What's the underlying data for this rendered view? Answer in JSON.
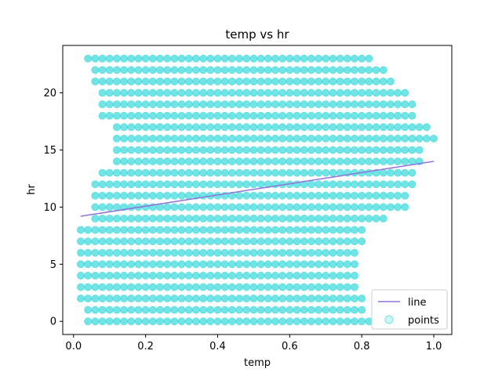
{
  "chart_data": {
    "type": "scatter",
    "title": "temp vs hr",
    "xlabel": "temp",
    "ylabel": "hr",
    "xlim": [
      -0.03,
      1.05
    ],
    "ylim": [
      -1.15,
      24.15
    ],
    "xticks": [
      0.0,
      0.2,
      0.4,
      0.6,
      0.8,
      1.0
    ],
    "xtick_labels": [
      "0.0",
      "0.2",
      "0.4",
      "0.6",
      "0.8",
      "1.0"
    ],
    "yticks": [
      0,
      5,
      10,
      15,
      20
    ],
    "ytick_labels": [
      "0",
      "5",
      "10",
      "15",
      "20"
    ],
    "grid": false,
    "legend": {
      "placement": "lower-right",
      "entries": [
        "line",
        "points"
      ]
    },
    "series": [
      {
        "name": "line",
        "kind": "line",
        "color": "#9370DB",
        "x": [
          0.02,
          1.0
        ],
        "y": [
          9.2,
          14.0
        ]
      },
      {
        "name": "points",
        "kind": "scatter",
        "color": "#00CED1",
        "alpha": 0.2,
        "hour_ranges": [
          {
            "hr": 0,
            "min": 0.04,
            "max": 0.82
          },
          {
            "hr": 1,
            "min": 0.04,
            "max": 0.8
          },
          {
            "hr": 2,
            "min": 0.02,
            "max": 0.8
          },
          {
            "hr": 3,
            "min": 0.02,
            "max": 0.78
          },
          {
            "hr": 4,
            "min": 0.02,
            "max": 0.78
          },
          {
            "hr": 5,
            "min": 0.02,
            "max": 0.78
          },
          {
            "hr": 6,
            "min": 0.02,
            "max": 0.78
          },
          {
            "hr": 7,
            "min": 0.02,
            "max": 0.8
          },
          {
            "hr": 8,
            "min": 0.02,
            "max": 0.8
          },
          {
            "hr": 9,
            "min": 0.06,
            "max": 0.86
          },
          {
            "hr": 10,
            "min": 0.06,
            "max": 0.92
          },
          {
            "hr": 11,
            "min": 0.06,
            "max": 0.92
          },
          {
            "hr": 12,
            "min": 0.06,
            "max": 0.94
          },
          {
            "hr": 13,
            "min": 0.08,
            "max": 0.94
          },
          {
            "hr": 14,
            "min": 0.12,
            "max": 0.96
          },
          {
            "hr": 15,
            "min": 0.12,
            "max": 0.96
          },
          {
            "hr": 16,
            "min": 0.12,
            "max": 1.0
          },
          {
            "hr": 17,
            "min": 0.12,
            "max": 0.98
          },
          {
            "hr": 18,
            "min": 0.08,
            "max": 0.94
          },
          {
            "hr": 19,
            "min": 0.08,
            "max": 0.94
          },
          {
            "hr": 20,
            "min": 0.08,
            "max": 0.92
          },
          {
            "hr": 21,
            "min": 0.06,
            "max": 0.88
          },
          {
            "hr": 22,
            "min": 0.06,
            "max": 0.86
          },
          {
            "hr": 23,
            "min": 0.04,
            "max": 0.82
          }
        ],
        "x_step": 0.02
      }
    ]
  }
}
